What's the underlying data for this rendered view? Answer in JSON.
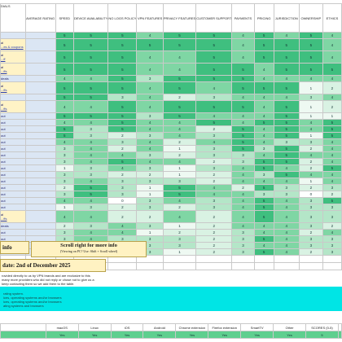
{
  "headers": [
    "",
    "AVERAGE RATING",
    "SPEED",
    "DEVICE AVAILABILITY",
    "NO LOGS POLICY",
    "VPN FEATURES",
    "PRIVACY FEATURES",
    "CUSTOMER SUPPORT",
    "PAYMENTS",
    "PRICING",
    "JURISDICTION",
    "OWNERSHIP",
    "ETHICS"
  ],
  "partial_header": "DIALS",
  "rows": [
    {
      "name": "",
      "link": "",
      "type": "r",
      "yellow": false,
      "scores": [
        "5",
        "5",
        "5",
        "4",
        "5",
        "5",
        "4",
        "5",
        "4",
        "5",
        "4"
      ]
    },
    {
      "name": "al",
      "link": "...es & coupons",
      "type": "rt",
      "yellow": true,
      "scores": [
        "5",
        "5",
        "5",
        "5",
        "5",
        "5",
        "4",
        "5",
        "5",
        "5",
        "4"
      ]
    },
    {
      "name": "al",
      "link": "...ff",
      "type": "rt",
      "yellow": true,
      "scores": [
        "5",
        "5",
        "5",
        "4",
        "4",
        "5",
        "4",
        "5",
        "5",
        "5",
        "4"
      ]
    },
    {
      "name": "al",
      "link": "...ffs",
      "type": "rt",
      "yellow": true,
      "scores": [
        "5",
        "5",
        "5",
        "4",
        "4",
        "5",
        "5",
        "4",
        "5",
        "5",
        "5"
      ]
    },
    {
      "name": "deals",
      "link": "",
      "type": "r",
      "yellow": false,
      "scores": [
        "4",
        "4",
        "5",
        "3",
        "5",
        "5",
        "5",
        "4",
        "4",
        "4",
        "4"
      ]
    },
    {
      "name": "al",
      "link": "...ffs",
      "type": "rt",
      "yellow": true,
      "scores": [
        "5",
        "5",
        "5",
        "4",
        "5",
        "4",
        "5",
        "5",
        "5",
        "1",
        "2"
      ]
    },
    {
      "name": "",
      "link": "",
      "type": "r",
      "yellow": false,
      "scores": [
        "5",
        "5",
        "3",
        "4",
        "2",
        "3",
        "4",
        "4",
        "4",
        "3",
        "4"
      ]
    },
    {
      "name": "al",
      "link": "...ffs",
      "type": "rt",
      "yellow": true,
      "scores": [
        "4",
        "4",
        "5",
        "4",
        "5",
        "5",
        "5",
        "4",
        "5",
        "1",
        "2"
      ]
    },
    {
      "name": "out",
      "link": "",
      "type": "r",
      "yellow": false,
      "scores": [
        "5",
        "5",
        "5",
        "3",
        "5",
        "4",
        "4",
        "4",
        "5",
        "1",
        "1"
      ]
    },
    {
      "name": "out",
      "link": "",
      "type": "r",
      "yellow": false,
      "scores": [
        "4",
        "4",
        "5",
        "4",
        "4",
        "5",
        "4",
        "5",
        "5",
        "4",
        "5"
      ]
    },
    {
      "name": "out",
      "link": "",
      "type": "r",
      "yellow": false,
      "scores": [
        "5",
        "3",
        "5",
        "4",
        "4",
        "2",
        "5",
        "4",
        "5",
        "4",
        "5"
      ]
    },
    {
      "name": "out",
      "link": "",
      "type": "r",
      "yellow": false,
      "scores": [
        "5",
        "3",
        "2",
        "3",
        "4",
        "3",
        "5",
        "4",
        "5",
        "1",
        "5"
      ]
    },
    {
      "name": "out",
      "link": "",
      "type": "r",
      "yellow": false,
      "scores": [
        "4",
        "4",
        "3",
        "4",
        "2",
        "4",
        "5",
        "4",
        "3",
        "3",
        "4"
      ]
    },
    {
      "name": "out",
      "link": "",
      "type": "r",
      "yellow": false,
      "scores": [
        "3",
        "4",
        "2",
        "4",
        "1",
        "3",
        "5",
        "3",
        "5",
        "2",
        "4"
      ]
    },
    {
      "name": "out",
      "link": "",
      "type": "r",
      "yellow": false,
      "scores": [
        "3",
        "4",
        "4",
        "3",
        "2",
        "3",
        "3",
        "4",
        "5",
        "4",
        "4"
      ]
    },
    {
      "name": "out",
      "link": "",
      "type": "r",
      "yellow": false,
      "scores": [
        "3",
        "4",
        "5",
        "4",
        "4",
        "2",
        "3",
        "5",
        "5",
        "2",
        "4"
      ]
    },
    {
      "name": "out",
      "link": "",
      "type": "r",
      "yellow": false,
      "scores": [
        "1",
        "3",
        "4",
        "3",
        "1",
        "3",
        "4",
        "5",
        "4",
        "2",
        "5"
      ]
    },
    {
      "name": "out",
      "link": "",
      "type": "r",
      "yellow": false,
      "scores": [
        "3",
        "3",
        "2",
        "2",
        "1",
        "2",
        "4",
        "3",
        "5",
        "4",
        "4"
      ]
    },
    {
      "name": "out",
      "link": "",
      "type": "r",
      "yellow": false,
      "scores": [
        "3",
        "4",
        "3",
        "3",
        "3",
        "2",
        "4",
        "4",
        "4",
        "1",
        "4"
      ]
    },
    {
      "name": "out",
      "link": "",
      "type": "r",
      "yellow": false,
      "scores": [
        "2",
        "5",
        "3",
        "1",
        "5",
        "4",
        "2",
        "5",
        "3",
        "2",
        "3"
      ]
    },
    {
      "name": "out",
      "link": "",
      "type": "r",
      "yellow": false,
      "scores": [
        "3",
        "5",
        "3",
        "1",
        "5",
        "4",
        "4",
        "3",
        "3",
        "0",
        "2"
      ]
    },
    {
      "name": "out",
      "link": "",
      "type": "r",
      "yellow": false,
      "scores": [
        "4",
        "4",
        "0",
        "3",
        "4",
        "3",
        "4",
        "5",
        "4",
        "3",
        "5"
      ]
    },
    {
      "name": "out",
      "link": "",
      "type": "r",
      "yellow": false,
      "scores": [
        "1",
        "3",
        "2",
        "3",
        "2",
        "3",
        "4",
        "5",
        "4",
        "3",
        "3"
      ]
    },
    {
      "name": "al",
      "link": "...ffs",
      "type": "rt",
      "yellow": true,
      "scores": [
        "4",
        "4",
        "2",
        "2",
        "4",
        "2",
        "4",
        "5",
        "4",
        "3",
        "3"
      ]
    },
    {
      "name": "deals",
      "link": "",
      "type": "r",
      "yellow": false,
      "scores": [
        "2",
        "3",
        "4",
        "3",
        "1",
        "2",
        "4",
        "4",
        "4",
        "3",
        "2"
      ]
    },
    {
      "name": "out",
      "link": "",
      "type": "r",
      "yellow": false,
      "scores": [
        "3",
        "4",
        "4",
        "1",
        "2",
        "2",
        "3",
        "4",
        "4",
        "2",
        "4"
      ]
    },
    {
      "name": "out",
      "link": "",
      "type": "r",
      "yellow": false,
      "scores": [
        "3",
        "4",
        "3",
        "3",
        "3",
        "2",
        "3",
        "5",
        "4",
        "3",
        "3"
      ]
    },
    {
      "name": "out",
      "link": "",
      "type": "r",
      "yellow": false,
      "scores": [
        "2",
        "4",
        "3",
        "3",
        "3",
        "2",
        "3",
        "4",
        "4",
        "3",
        "3"
      ]
    },
    {
      "name": "out",
      "link": "",
      "type": "r",
      "yellow": false,
      "scores": [
        "2",
        "4",
        "4",
        "3",
        "1",
        "2",
        "3",
        "5",
        "4",
        "2",
        "3"
      ]
    }
  ],
  "info_left": "info",
  "scroll_title": "Scroll right for more info",
  "scroll_sub": "(Viewing on PC? Use: Shift + Scroll wheel)",
  "update_text": "date: 2nd of December 2025",
  "note_lines": [
    "rovided directly to us by VPN brands and are exclusive to this",
    "many more providers who did not reply or chose not to give us a",
    "keep contacting them so we add them to the table."
  ],
  "cyan_lines": [
    "rating system.",
    "ices, operating systems and/or browsers",
    "ices, operating systems and/or browsers",
    "ating systems and browsers"
  ],
  "bottom_headers": [
    "",
    "macOS",
    "Linux",
    "iOS",
    "Android",
    "Chrome extension",
    "Firefox extension",
    "SmartTV",
    "Other",
    "SCORES (0-5)",
    ""
  ],
  "bottom_values": [
    "",
    "Yes",
    "Yes",
    "Yes",
    "Yes",
    "Yes",
    "Yes",
    "Yes",
    "Yes",
    "5",
    ""
  ],
  "score_colors": {
    "5": "#3fbf7f",
    "4": "#7fd6a4",
    "3": "#b4e6c8",
    "2": "#d9f2e3",
    "1": "#eef9f2",
    "0": "#ffffff"
  }
}
